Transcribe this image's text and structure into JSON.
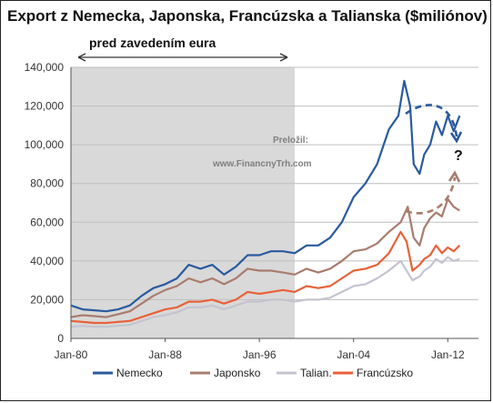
{
  "chart_data": {
    "type": "line",
    "title": "Export z Nemecka, Japonska, Francúzska a Talianska  ($miliónov)",
    "xlabel": "",
    "ylabel": "",
    "xlim": [
      1980.0,
      2014.6
    ],
    "ylim": [
      0,
      140000
    ],
    "x_ticks": [
      "Jan-80",
      "Jan-88",
      "Jan-96",
      "Jan-04",
      "Jan-12"
    ],
    "y_ticks": [
      "0",
      "20,000",
      "40,000",
      "60,000",
      "80,000",
      "100,000",
      "120,000",
      "140,000"
    ],
    "grid": true,
    "legend_position": "bottom",
    "shaded_region": {
      "label": "pred zavedením eura",
      "x_start": 1980.0,
      "x_end": 1999.0
    },
    "annotations": {
      "translated": "Preložil:",
      "site": "www.FinancnyTrh.com",
      "question": "?"
    },
    "series": [
      {
        "name": "Nemecko",
        "color": "#2a5a9e",
        "x": [
          1980,
          1981,
          1982,
          1983,
          1984,
          1985,
          1986,
          1987,
          1988,
          1989,
          1990,
          1991,
          1992,
          1993,
          1994,
          1995,
          1996,
          1997,
          1998,
          1999,
          2000,
          2001,
          2002,
          2003,
          2004,
          2005,
          2006,
          2007,
          2007.8,
          2008.3,
          2008.8,
          2009.1,
          2009.6,
          2010,
          2010.5,
          2011,
          2011.5,
          2012,
          2012.5,
          2013
        ],
        "values": [
          17000,
          15000,
          14500,
          14000,
          15000,
          17000,
          22000,
          26000,
          28000,
          31000,
          38000,
          36000,
          38000,
          33000,
          37000,
          43000,
          43000,
          45000,
          45000,
          44000,
          48000,
          48000,
          52000,
          60000,
          73000,
          80000,
          90000,
          108000,
          115000,
          133000,
          120000,
          90000,
          85000,
          95000,
          100000,
          112000,
          105000,
          115000,
          107000,
          115000
        ]
      },
      {
        "name": "Japonsko",
        "color": "#a97c6e",
        "x": [
          1980,
          1981,
          1982,
          1983,
          1984,
          1985,
          1986,
          1987,
          1988,
          1989,
          1990,
          1991,
          1992,
          1993,
          1994,
          1995,
          1996,
          1997,
          1998,
          1999,
          2000,
          2001,
          2002,
          2003,
          2004,
          2005,
          2006,
          2007,
          2008,
          2008.6,
          2009.1,
          2009.6,
          2010,
          2010.5,
          2011,
          2011.5,
          2012,
          2012.5,
          2013
        ],
        "values": [
          11000,
          12000,
          11500,
          11000,
          12500,
          14000,
          18000,
          22000,
          25000,
          27000,
          31000,
          29000,
          31000,
          28000,
          31000,
          36000,
          35000,
          35000,
          34000,
          33000,
          36000,
          34000,
          36000,
          40000,
          45000,
          46000,
          49000,
          55000,
          60000,
          68000,
          52000,
          48000,
          57000,
          62000,
          65000,
          63000,
          72000,
          68000,
          66000
        ]
      },
      {
        "name": "Talian.",
        "color": "#c4c4d0",
        "x": [
          1980,
          1981,
          1982,
          1983,
          1984,
          1985,
          1986,
          1987,
          1988,
          1989,
          1990,
          1991,
          1992,
          1993,
          1994,
          1995,
          1996,
          1997,
          1998,
          1999,
          2000,
          2001,
          2002,
          2003,
          2004,
          2005,
          2006,
          2007,
          2008,
          2009,
          2009.6,
          2010,
          2010.5,
          2011,
          2011.5,
          2012,
          2012.5,
          2013
        ],
        "values": [
          6000,
          6500,
          6000,
          6000,
          6500,
          7000,
          9000,
          11000,
          12000,
          13500,
          16000,
          16000,
          17000,
          15000,
          17000,
          19000,
          19000,
          20000,
          20000,
          19000,
          20000,
          20000,
          21000,
          24000,
          27000,
          28000,
          31000,
          35000,
          40000,
          30000,
          32000,
          35000,
          37000,
          41000,
          39000,
          42000,
          40000,
          41000
        ]
      },
      {
        "name": "Francúzsko",
        "color": "#e8613a",
        "x": [
          1980,
          1981,
          1982,
          1983,
          1984,
          1985,
          1986,
          1987,
          1988,
          1989,
          1990,
          1991,
          1992,
          1993,
          1994,
          1995,
          1996,
          1997,
          1998,
          1999,
          2000,
          2001,
          2002,
          2003,
          2004,
          2005,
          2006,
          2007,
          2008,
          2008.5,
          2009,
          2009.6,
          2010,
          2010.5,
          2011,
          2011.5,
          2012,
          2012.5,
          2013
        ],
        "values": [
          9000,
          8500,
          8000,
          8000,
          8500,
          9000,
          11000,
          13000,
          15000,
          16000,
          19000,
          19000,
          20000,
          18000,
          20000,
          24000,
          23000,
          24000,
          25000,
          24000,
          27000,
          26000,
          27000,
          31000,
          35000,
          36000,
          38000,
          44000,
          55000,
          50000,
          35000,
          38000,
          41000,
          43000,
          48000,
          44000,
          47000,
          45000,
          48000
        ]
      }
    ]
  }
}
